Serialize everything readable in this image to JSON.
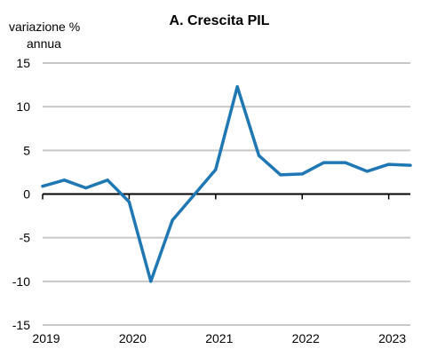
{
  "chart_data": {
    "type": "line",
    "title": "A. Crescita PIL",
    "ylabel_lines": [
      "variazione %",
      "annua"
    ],
    "xlabel": "",
    "ylim": [
      -15,
      15
    ],
    "yticks": [
      "15",
      "10",
      "5",
      "0",
      "-5",
      "-10",
      "-15"
    ],
    "ytick_values": [
      15,
      10,
      5,
      0,
      -5,
      -10,
      -15
    ],
    "xlim": [
      2019.0,
      2023.25
    ],
    "xticks": [
      "2019",
      "2020",
      "2021",
      "2022",
      "2023"
    ],
    "xtick_values": [
      2019,
      2020,
      2021,
      2022,
      2023
    ],
    "grid": true,
    "legend": "none",
    "series": [
      {
        "color": "#1f77b4",
        "x": [
          2019.0,
          2019.25,
          2019.5,
          2019.75,
          2020.0,
          2020.25,
          2020.5,
          2020.75,
          2021.0,
          2021.25,
          2021.5,
          2021.75,
          2022.0,
          2022.25,
          2022.5,
          2022.75,
          2023.0,
          2023.25
        ],
        "y": [
          0.9,
          1.6,
          0.7,
          1.6,
          -0.9,
          -10.0,
          -3.0,
          -0.1,
          2.8,
          12.3,
          4.4,
          2.2,
          2.3,
          3.6,
          3.6,
          2.6,
          3.4,
          3.3
        ]
      }
    ]
  }
}
